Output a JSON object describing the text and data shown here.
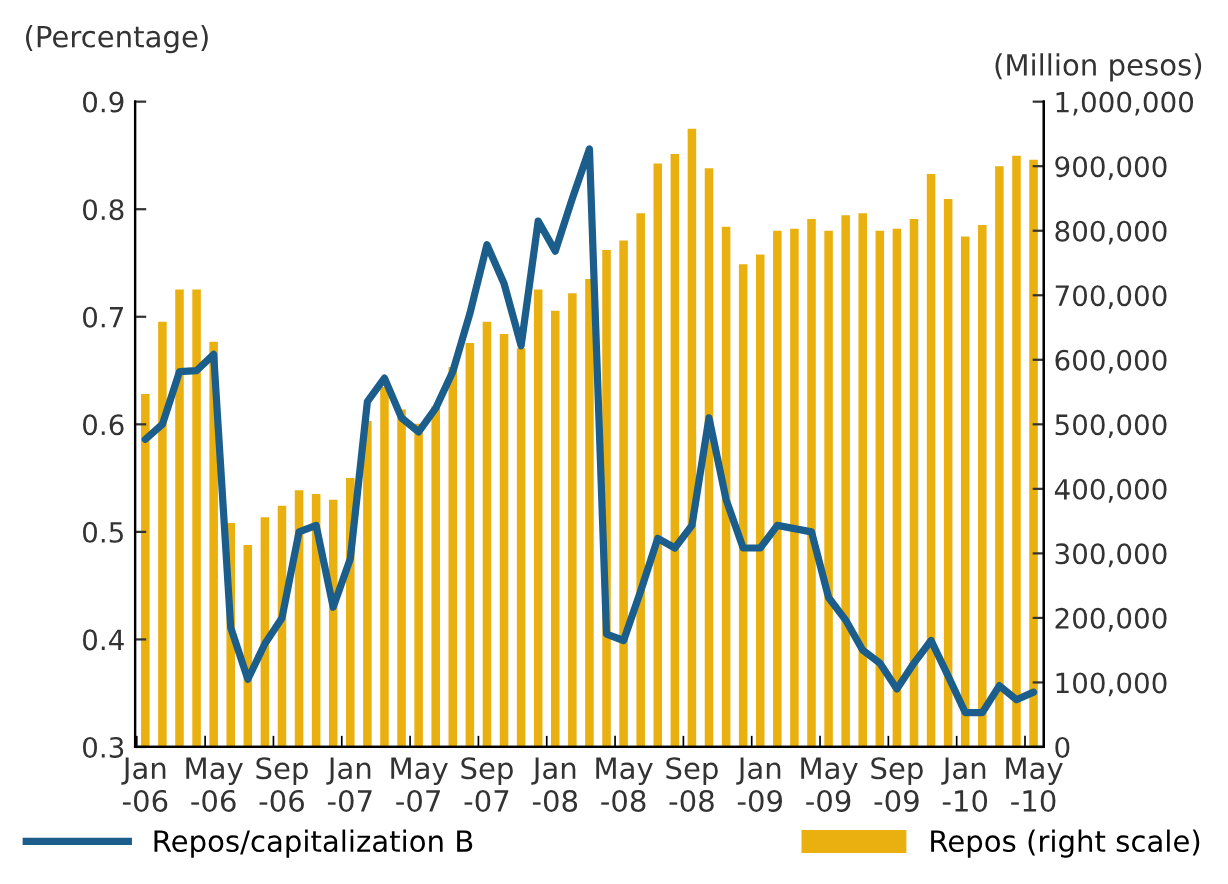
{
  "chart_data": {
    "type": "bar",
    "ylabel": "(Percentage)",
    "y2label": "(Million pesos)",
    "categories": [
      "Jan\n-06",
      null,
      null,
      null,
      "May\n-06",
      null,
      null,
      null,
      "Sep\n-06",
      null,
      null,
      null,
      "Jan\n-07",
      null,
      null,
      null,
      "May\n-07",
      null,
      null,
      null,
      "Sep\n-07",
      null,
      null,
      null,
      "Jan\n-08",
      null,
      null,
      null,
      "May\n-08",
      null,
      null,
      null,
      "Sep\n-08",
      null,
      null,
      null,
      "Jan\n-09",
      null,
      null,
      null,
      "May\n-09",
      null,
      null,
      null,
      "Sep\n-09",
      null,
      null,
      null,
      "Jan\n-10",
      null,
      null,
      null,
      "May\n-10"
    ],
    "series": [
      {
        "name": "Repos/capitalization B",
        "type": "line",
        "axis": "y",
        "color": "#1b5e8c",
        "values": [
          0.586,
          0.6,
          0.649,
          0.65,
          0.665,
          0.411,
          0.363,
          0.396,
          0.42,
          0.5,
          0.506,
          0.43,
          0.475,
          0.621,
          0.643,
          0.606,
          0.593,
          0.615,
          0.649,
          0.703,
          0.767,
          0.731,
          0.673,
          0.789,
          0.761,
          0.81,
          0.856,
          0.405,
          0.399,
          0.445,
          0.494,
          0.485,
          0.506,
          0.606,
          0.53,
          0.485,
          0.485,
          0.506,
          0.503,
          0.5,
          0.439,
          0.418,
          0.39,
          0.378,
          0.354,
          0.378,
          0.399,
          0.366,
          0.332,
          0.332,
          0.357,
          0.344,
          0.351
        ]
      },
      {
        "name": "Repos (right scale)",
        "axis": "y2",
        "color": "#e9b010",
        "values": [
          547000,
          659000,
          709000,
          709000,
          628000,
          347000,
          313000,
          356000,
          374000,
          398000,
          392000,
          383000,
          417000,
          505000,
          558000,
          523000,
          501000,
          528000,
          589000,
          626000,
          659000,
          640000,
          618000,
          709000,
          676000,
          703000,
          725000,
          770000,
          785000,
          827000,
          904000,
          919000,
          958000,
          897000,
          806000,
          748000,
          763000,
          800000,
          803000,
          818000,
          800000,
          824000,
          827000,
          800000,
          803000,
          818000,
          888000,
          849000,
          791000,
          809000,
          900000,
          916000,
          910000
        ]
      }
    ],
    "ylim": [
      0.3,
      0.9
    ],
    "yticks": [
      0.3,
      0.4,
      0.5,
      0.6,
      0.7,
      0.8,
      0.9
    ],
    "y2lim": [
      0,
      1000000
    ],
    "y2ticks": [
      0,
      {
        "value": 100000,
        "label": "100,000"
      },
      {
        "value": 200000,
        "label": "200,000"
      },
      {
        "value": 300000,
        "label": "300,000"
      },
      {
        "value": 400000,
        "label": "400,000"
      },
      {
        "value": 500000,
        "label": "500,000"
      },
      {
        "value": 600000,
        "label": "600,000"
      },
      {
        "value": 700000,
        "label": "700,000"
      },
      {
        "value": 800000,
        "label": "800,000"
      },
      {
        "value": 900000,
        "label": "900,000"
      },
      {
        "value": 1000000,
        "label": "1,000,000"
      }
    ],
    "grid": false,
    "legend": "bottom",
    "line_style": "solid",
    "marker": "none"
  }
}
